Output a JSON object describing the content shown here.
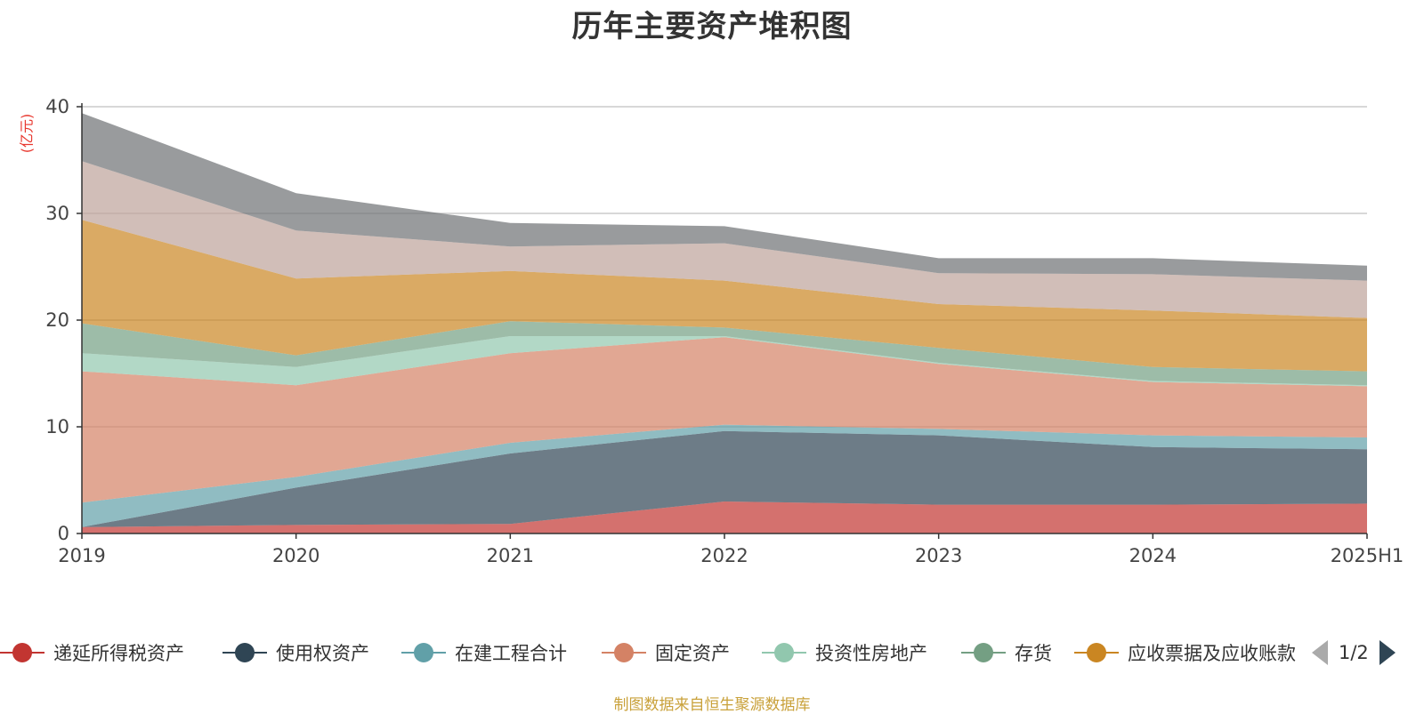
{
  "title": "历年主要资产堆积图",
  "y_unit": "(亿元)",
  "source": "制图数据来自恒生聚源数据库",
  "legend_page": "1/2",
  "chart_data": {
    "type": "area",
    "stacked": true,
    "categories": [
      "2019",
      "2020",
      "2021",
      "2022",
      "2023",
      "2024",
      "2025H1"
    ],
    "ylim": [
      0,
      40
    ],
    "yticks": [
      0,
      10,
      20,
      30,
      40
    ],
    "grid": true,
    "legend_position": "bottom",
    "series": [
      {
        "name": "递延所得税资产",
        "color": "#c23531",
        "values": [
          0.6,
          0.8,
          0.9,
          3.0,
          2.7,
          2.7,
          2.8
        ],
        "in_legend": true
      },
      {
        "name": "使用权资产",
        "color": "#2f4554",
        "values": [
          0.0,
          3.5,
          6.6,
          6.6,
          6.5,
          5.4,
          5.1
        ],
        "in_legend": true
      },
      {
        "name": "在建工程合计",
        "color": "#61a0a8",
        "values": [
          2.3,
          1.0,
          1.0,
          0.6,
          0.6,
          1.1,
          1.1
        ],
        "in_legend": true
      },
      {
        "name": "固定资产",
        "color": "#d48265",
        "values": [
          12.3,
          8.6,
          8.4,
          8.2,
          6.1,
          5.0,
          4.8
        ],
        "in_legend": true
      },
      {
        "name": "投资性房地产",
        "color": "#91c7ae",
        "values": [
          1.7,
          1.7,
          1.6,
          0.1,
          0.1,
          0.1,
          0.1
        ],
        "in_legend": true
      },
      {
        "name": "存货",
        "color": "#749f83",
        "values": [
          2.8,
          1.1,
          1.4,
          0.8,
          1.4,
          1.3,
          1.3
        ],
        "in_legend": true
      },
      {
        "name": "应收票据及应收账款",
        "color": "#ca8622",
        "values": [
          9.7,
          7.2,
          4.7,
          4.4,
          4.1,
          5.3,
          5.0
        ],
        "in_legend": true
      },
      {
        "name": "",
        "color": "#bda29a",
        "values": [
          5.5,
          4.5,
          2.3,
          3.5,
          2.9,
          3.4,
          3.5
        ],
        "in_legend": false
      },
      {
        "name": "",
        "color": "#6e7074",
        "values": [
          4.5,
          3.5,
          2.2,
          1.6,
          1.4,
          1.5,
          1.4
        ],
        "in_legend": false
      }
    ]
  }
}
